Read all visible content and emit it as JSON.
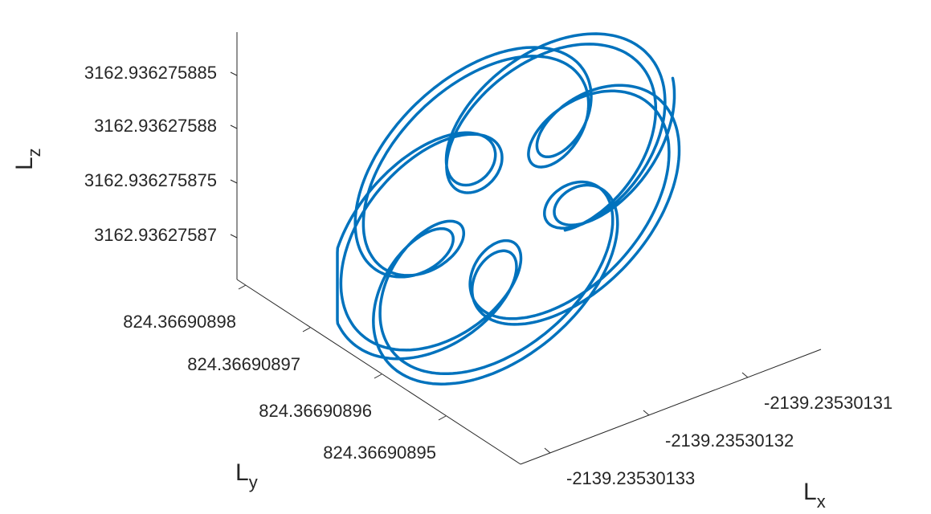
{
  "chart_data": {
    "type": "line",
    "subtype": "3d-parametric-curve",
    "xlabel": "L",
    "xlabel_sub": "x",
    "ylabel": "L",
    "ylabel_sub": "y",
    "zlabel": "L",
    "zlabel_sub": "z",
    "x_ticks": [
      "-2139.23530133",
      "-2139.23530132",
      "-2139.23530131"
    ],
    "y_ticks": [
      "824.36690895",
      "824.36690896",
      "824.36690897",
      "824.36690898"
    ],
    "z_ticks": [
      "3162.93627587",
      "3162.936275875",
      "3162.93627588",
      "3162.936275885"
    ],
    "series": [
      {
        "color": "#0072BD",
        "x": [
          -2139.235301335,
          -2139.23530133,
          -2139.235301325,
          -2139.23530132,
          -2139.235301315,
          -2139.23530131,
          -2139.235301305
        ],
        "y": [
          824.36690896,
          824.366908955,
          824.36690895,
          824.36690896,
          824.36690897,
          824.366908975,
          824.366908965
        ],
        "z": [
          3162.936275872,
          3162.936275878,
          3162.936275884,
          3162.936275886,
          3162.93627588,
          3162.936275874,
          3162.93627587
        ]
      }
    ],
    "grid": false,
    "legend": "none"
  }
}
